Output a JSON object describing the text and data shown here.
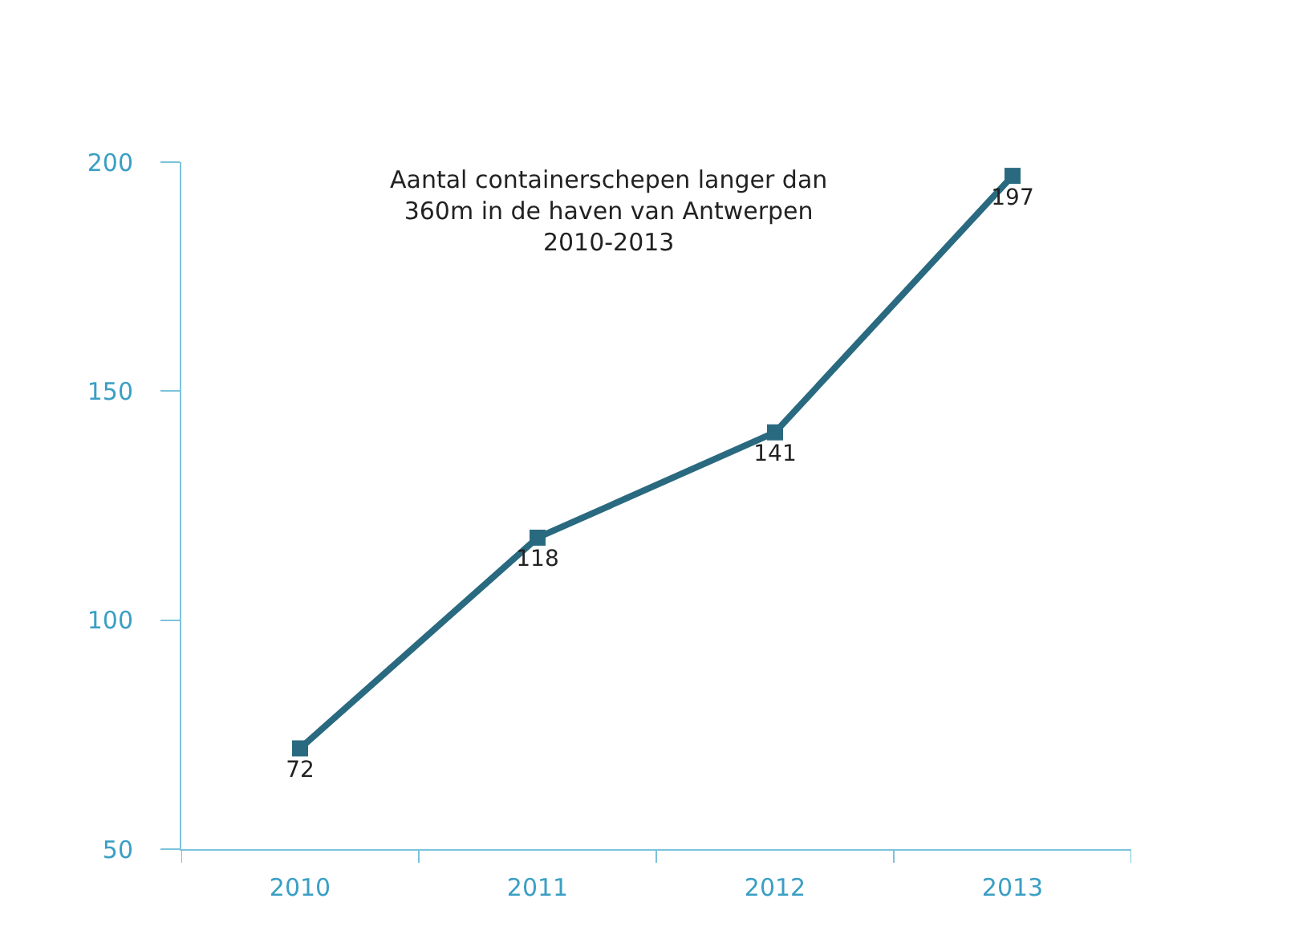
{
  "chart_data": {
    "type": "line",
    "title": "Aantal containerschepen langer dan\n360m in de haven van Antwerpen\n2010-2013",
    "categories": [
      "2010",
      "2011",
      "2012",
      "2013"
    ],
    "series": [
      {
        "color": "#2a6a80",
        "values": [
          72,
          118,
          141,
          197
        ]
      }
    ],
    "ylim": [
      50,
      200
    ],
    "yticks": [
      50,
      100,
      150,
      200
    ],
    "legend": false,
    "marker": "square",
    "line_style": "solid",
    "data_labels": true
  }
}
